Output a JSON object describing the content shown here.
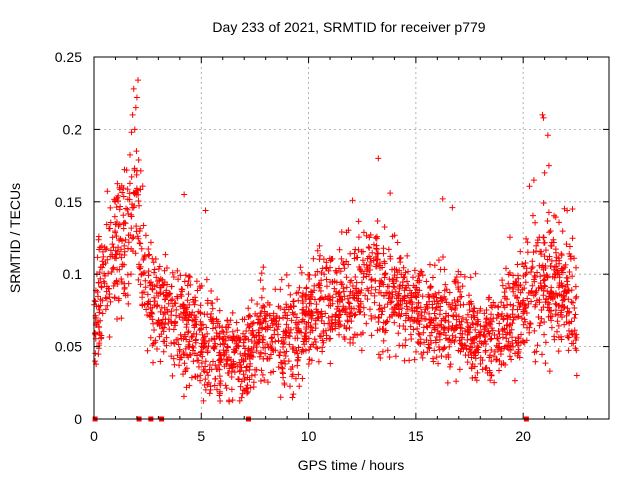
{
  "chart_data": {
    "type": "scatter",
    "title": "Day 233 of 2021, SRMTID for receiver p779",
    "xlabel": "GPS time / hours",
    "ylabel": "SRMTID / TECUs",
    "xlim": [
      0,
      24
    ],
    "ylim": [
      0,
      0.25
    ],
    "xticks": [
      0,
      5,
      10,
      15,
      20
    ],
    "yticks": [
      0,
      0.05,
      0.1,
      0.15,
      0.2,
      0.25
    ],
    "xtick_labels": [
      "0",
      "5",
      "10",
      "15",
      "20"
    ],
    "ytick_labels": [
      "0",
      "0.05",
      "0.1",
      "0.15",
      "0.2",
      "0.25"
    ],
    "grid": true,
    "marker": "+",
    "marker_color": "#ff0000",
    "grid_color": "#a0a0a0",
    "baseline_markers_x": [
      0.05,
      2.1,
      2.65,
      3.15,
      7.2,
      20.15
    ],
    "envelope": {
      "x": [
        0,
        0.3,
        0.8,
        1.3,
        1.7,
        1.9,
        2.1,
        2.4,
        3.0,
        3.5,
        4.0,
        4.5,
        5.0,
        5.5,
        6.0,
        6.5,
        7.0,
        7.5,
        8.0,
        8.5,
        9.0,
        9.5,
        10.0,
        10.5,
        11.0,
        11.5,
        12.0,
        12.5,
        13.0,
        13.5,
        14.0,
        14.5,
        15.0,
        15.5,
        16.0,
        16.5,
        17.0,
        17.5,
        18.0,
        18.5,
        19.0,
        19.5,
        20.0,
        20.5,
        21.0,
        21.5,
        22.0,
        22.5
      ],
      "mean": [
        0.07,
        0.085,
        0.11,
        0.125,
        0.14,
        0.15,
        0.13,
        0.095,
        0.08,
        0.072,
        0.065,
        0.06,
        0.058,
        0.052,
        0.045,
        0.042,
        0.045,
        0.055,
        0.06,
        0.06,
        0.055,
        0.058,
        0.07,
        0.078,
        0.08,
        0.082,
        0.085,
        0.09,
        0.092,
        0.09,
        0.085,
        0.08,
        0.075,
        0.072,
        0.072,
        0.07,
        0.072,
        0.065,
        0.058,
        0.055,
        0.062,
        0.075,
        0.085,
        0.095,
        0.095,
        0.09,
        0.085,
        0.075
      ],
      "spread": [
        0.02,
        0.025,
        0.03,
        0.03,
        0.035,
        0.035,
        0.03,
        0.03,
        0.025,
        0.022,
        0.022,
        0.022,
        0.022,
        0.02,
        0.018,
        0.018,
        0.018,
        0.02,
        0.022,
        0.022,
        0.022,
        0.022,
        0.022,
        0.022,
        0.022,
        0.022,
        0.024,
        0.026,
        0.028,
        0.026,
        0.024,
        0.022,
        0.022,
        0.022,
        0.024,
        0.024,
        0.022,
        0.022,
        0.02,
        0.02,
        0.022,
        0.025,
        0.028,
        0.03,
        0.03,
        0.028,
        0.025,
        0.025
      ]
    },
    "point_count": 2400,
    "outliers": [
      {
        "x": 2.05,
        "y": 0.234
      },
      {
        "x": 1.85,
        "y": 0.228
      },
      {
        "x": 2.0,
        "y": 0.222
      },
      {
        "x": 1.95,
        "y": 0.215
      },
      {
        "x": 1.8,
        "y": 0.21
      },
      {
        "x": 1.75,
        "y": 0.198
      },
      {
        "x": 1.9,
        "y": 0.2
      },
      {
        "x": 13.25,
        "y": 0.18
      },
      {
        "x": 20.9,
        "y": 0.21
      },
      {
        "x": 20.95,
        "y": 0.208
      },
      {
        "x": 21.15,
        "y": 0.196
      },
      {
        "x": 21.2,
        "y": 0.175
      },
      {
        "x": 21.0,
        "y": 0.17
      },
      {
        "x": 20.5,
        "y": 0.165
      },
      {
        "x": 4.2,
        "y": 0.155
      },
      {
        "x": 13.8,
        "y": 0.156
      },
      {
        "x": 16.25,
        "y": 0.152
      },
      {
        "x": 5.2,
        "y": 0.144
      },
      {
        "x": 22.3,
        "y": 0.145
      },
      {
        "x": 22.05,
        "y": 0.144
      },
      {
        "x": 12.05,
        "y": 0.151
      },
      {
        "x": 16.7,
        "y": 0.146
      },
      {
        "x": 0.05,
        "y": 0.04
      },
      {
        "x": 22.5,
        "y": 0.03
      },
      {
        "x": 6.3,
        "y": 0.012
      },
      {
        "x": 8.7,
        "y": 0.015
      }
    ],
    "seed": 233
  }
}
